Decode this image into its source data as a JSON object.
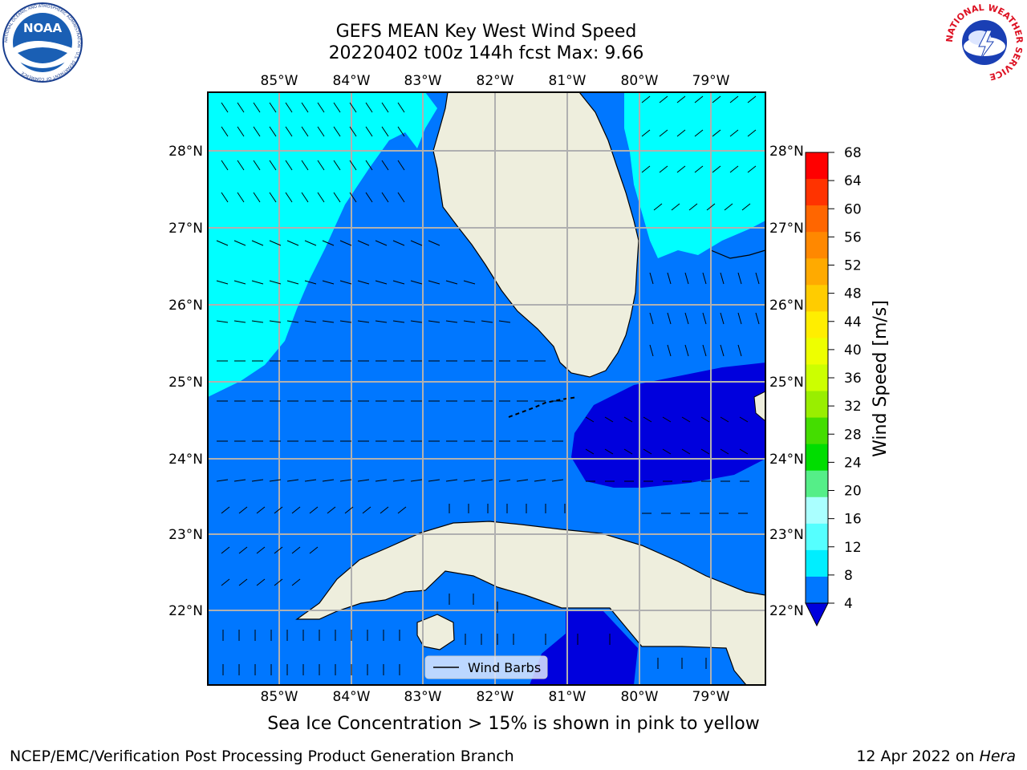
{
  "header": {
    "title_line1": "GEFS MEAN Key West Wind Speed",
    "title_line2": "20220402 t00z 144h fcst   Max: 9.66"
  },
  "logos": {
    "left": "NOAA",
    "left_ring": "NATIONAL OCEANIC AND ATMOSPHERIC ADMINISTRATION · U.S. DEPARTMENT OF COMMERCE",
    "right_ring": "NATIONAL WEATHER SERVICE"
  },
  "map": {
    "lon_labels": [
      "85°W",
      "84°W",
      "83°W",
      "82°W",
      "81°W",
      "80°W",
      "79°W"
    ],
    "lat_labels": [
      "28°N",
      "27°N",
      "26°N",
      "25°N",
      "24°N",
      "23°N",
      "22°N"
    ],
    "legend_label": "Wind Barbs",
    "colors": {
      "land": "#eeeedd",
      "speed_0_4": "#0000dd",
      "speed_4_8": "#0077ff",
      "speed_8_12": "#00ffff",
      "grid": "#b0b0b0"
    }
  },
  "colorbar": {
    "label": "Wind Speed [m/s]",
    "ticks": [
      "68",
      "64",
      "60",
      "56",
      "52",
      "48",
      "44",
      "40",
      "36",
      "32",
      "28",
      "24",
      "20",
      "16",
      "12",
      "8",
      "4"
    ],
    "colors": [
      "#ff0000",
      "#ff3300",
      "#ff6600",
      "#ff8800",
      "#ffaa00",
      "#ffcc00",
      "#ffee00",
      "#eeff00",
      "#ccff00",
      "#99ee00",
      "#44dd00",
      "#00dd00",
      "#55ee88",
      "#aaffff",
      "#55ffff",
      "#00eeff",
      "#0077ff"
    ],
    "under_color": "#0000dd"
  },
  "notes": {
    "ice": "Sea Ice Concentration > 15% is shown in pink to yellow"
  },
  "footer": {
    "left": "NCEP/EMC/Verification Post Processing Product Generation Branch",
    "right_prefix": "12 Apr 2022 on ",
    "right_host": "Hera"
  }
}
